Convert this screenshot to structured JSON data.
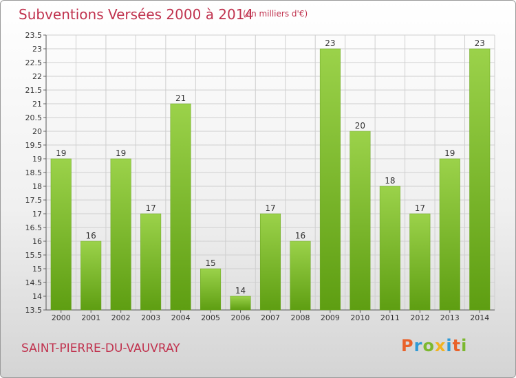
{
  "title": "Subventions Versées 2000 à 2014",
  "subtitle": "(en milliers d'€)",
  "commune": "SAINT-PIERRE-DU-VAUVRAY",
  "logo": {
    "letters": [
      "P",
      "r",
      "o",
      "x",
      "i",
      "t",
      "i"
    ],
    "colors": [
      "#e9622a",
      "#2e9ad6",
      "#7cb82f",
      "#f2b322",
      "#2e9ad6",
      "#e9622a",
      "#7cb82f"
    ]
  },
  "chart_data": {
    "type": "bar",
    "categories": [
      "2000",
      "2001",
      "2002",
      "2003",
      "2004",
      "2005",
      "2006",
      "2007",
      "2008",
      "2009",
      "2010",
      "2011",
      "2012",
      "2013",
      "2014"
    ],
    "values": [
      19,
      16,
      19,
      17,
      21,
      15,
      14,
      17,
      16,
      23,
      20,
      18,
      17,
      19,
      23
    ],
    "labels": [
      "19",
      "16",
      "19",
      "17",
      "21",
      "15",
      "14",
      "17",
      "16",
      "23",
      "20",
      "18",
      "17",
      "19",
      "23"
    ],
    "ylim": [
      13.5,
      23.5
    ],
    "yticks": [
      "13.5",
      "14",
      "14.5",
      "15",
      "15.5",
      "16",
      "16.5",
      "17",
      "17.5",
      "18",
      "18.5",
      "19",
      "19.5",
      "20",
      "20.5",
      "21",
      "21.5",
      "22",
      "22.5",
      "23",
      "23.5"
    ],
    "grid": true,
    "bar_color": "#8cc63f"
  }
}
